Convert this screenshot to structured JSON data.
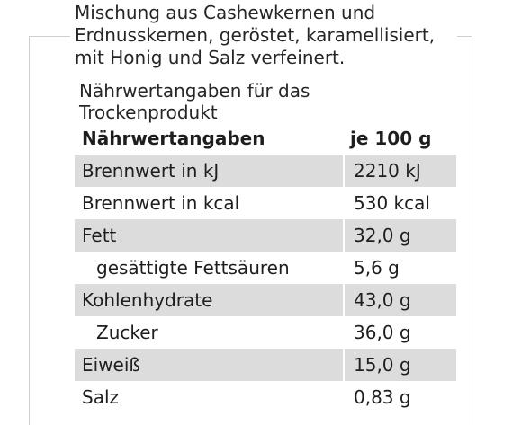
{
  "description": {
    "line1": "Mischung aus Cashewkernen und",
    "line2": "Erdnusskernen, geröstet, karamellisiert,",
    "line3": "mit Honig und Salz verfeinert."
  },
  "caption": {
    "line1": "Nährwertangaben für das",
    "line2": "Trockenprodukt"
  },
  "table": {
    "header": {
      "name": "Nährwertangaben",
      "value": "je 100 g"
    },
    "rows": [
      {
        "name": "Brennwert in kJ",
        "value": "2210 kJ"
      },
      {
        "name": "Brennwert in kcal",
        "value": "530 kcal"
      },
      {
        "name": "Fett",
        "value": "32,0 g"
      },
      {
        "name": "gesättigte Fettsäuren",
        "value": "5,6 g"
      },
      {
        "name": "Kohlenhydrate",
        "value": "43,0 g"
      },
      {
        "name": "Zucker",
        "value": "36,0 g"
      },
      {
        "name": "Eiweiß",
        "value": "15,0 g"
      },
      {
        "name": "Salz",
        "value": "0,83 g"
      }
    ]
  },
  "colors": {
    "shade": "#dcdcdc",
    "frame": "#cfcfcf"
  }
}
